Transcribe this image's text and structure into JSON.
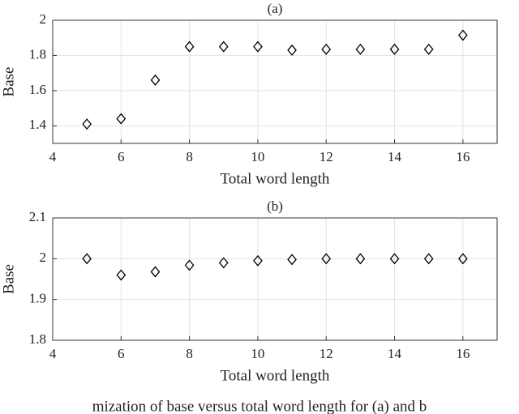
{
  "chart_data": [
    {
      "type": "scatter",
      "title": "(a)",
      "xlabel": "Total word length",
      "ylabel": "Base",
      "x": [
        5,
        6,
        7,
        8,
        9,
        10,
        11,
        12,
        13,
        14,
        15,
        16
      ],
      "values": [
        1.41,
        1.44,
        1.66,
        1.85,
        1.85,
        1.85,
        1.83,
        1.835,
        1.835,
        1.835,
        1.835,
        1.915
      ],
      "color": "#000000",
      "xlim": [
        4,
        17
      ],
      "xticks": [
        4,
        6,
        8,
        10,
        12,
        14,
        16
      ],
      "ylim": [
        1.3,
        2
      ],
      "yticks": [
        1.4,
        1.6,
        1.8,
        2
      ],
      "grid": true
    },
    {
      "type": "scatter",
      "title": "(b)",
      "xlabel": "Total word length",
      "ylabel": "Base",
      "x": [
        5,
        6,
        7,
        8,
        9,
        10,
        11,
        12,
        13,
        14,
        15,
        16
      ],
      "values": [
        2.0,
        1.96,
        1.968,
        1.984,
        1.99,
        1.995,
        1.998,
        2.0,
        2.0,
        2.0,
        2.0,
        2.0
      ],
      "color": "#000000",
      "xlim": [
        4,
        17
      ],
      "xticks": [
        4,
        6,
        8,
        10,
        12,
        14,
        16
      ],
      "ylim": [
        1.8,
        2.1
      ],
      "yticks": [
        1.8,
        1.9,
        2,
        2.1
      ],
      "grid": true
    }
  ],
  "caption": "mization of base versus total word length for (a) and b"
}
